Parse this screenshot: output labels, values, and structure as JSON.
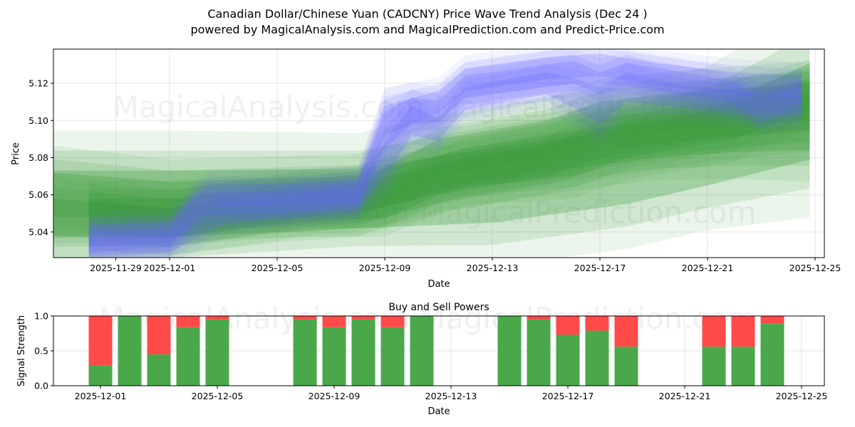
{
  "title_line1": "Canadian Dollar/Chinese Yuan (CADCNY) Price Wave Trend Analysis (Dec 24 )",
  "title_line2": "powered by MagicalAnalysis.com and MagicalPrediction.com and Predict-Price.com",
  "watermarks": [
    "MagicalAnalysis.com",
    "MagicalPrediction.com"
  ],
  "chart_data": [
    {
      "type": "area",
      "title": "",
      "xlabel": "Date",
      "ylabel": "Price",
      "ylim": [
        5.0262,
        5.1384
      ],
      "x_ticks": [
        "2025-11-29",
        "2025-12-01",
        "2025-12-05",
        "2025-12-09",
        "2025-12-13",
        "2025-12-17",
        "2025-12-21",
        "2025-12-25"
      ],
      "x_tick_days": [
        -2,
        0,
        4,
        8,
        12,
        16,
        20,
        24
      ],
      "y_ticks": [
        "5.04",
        "5.06",
        "5.08",
        "5.10",
        "5.12"
      ],
      "y_tick_values": [
        5.04,
        5.06,
        5.08,
        5.1,
        5.12
      ],
      "colors": {
        "blue": "#6666ff",
        "green": "#3a9a3a"
      },
      "blue_bands": [
        {
          "name": "wave-blue-1",
          "points": [
            [
              -3,
              5.035,
              0.006
            ],
            [
              0,
              5.037,
              0.005
            ],
            [
              1,
              5.055,
              0.006
            ],
            [
              4,
              5.056,
              0.006
            ],
            [
              7,
              5.06,
              0.006
            ],
            [
              8,
              5.095,
              0.01
            ],
            [
              9,
              5.105,
              0.007
            ],
            [
              10,
              5.105,
              0.006
            ],
            [
              11,
              5.118,
              0.006
            ],
            [
              14,
              5.124,
              0.006
            ],
            [
              15,
              5.126,
              0.006
            ],
            [
              16,
              5.12,
              0.006
            ],
            [
              17,
              5.125,
              0.006
            ],
            [
              19,
              5.12,
              0.006
            ],
            [
              21,
              5.115,
              0.006
            ],
            [
              22,
              5.105,
              0.006
            ],
            [
              23.5,
              5.115,
              0.006
            ]
          ]
        },
        {
          "name": "wave-blue-2",
          "points": [
            [
              -3,
              5.032,
              0.005
            ],
            [
              0,
              5.034,
              0.005
            ],
            [
              2,
              5.05,
              0.006
            ],
            [
              5,
              5.055,
              0.006
            ],
            [
              7,
              5.058,
              0.006
            ],
            [
              8.3,
              5.085,
              0.01
            ],
            [
              9,
              5.1,
              0.008
            ],
            [
              10,
              5.095,
              0.006
            ],
            [
              11,
              5.112,
              0.006
            ],
            [
              14,
              5.12,
              0.006
            ],
            [
              15,
              5.115,
              0.008
            ],
            [
              16,
              5.108,
              0.01
            ],
            [
              17,
              5.118,
              0.008
            ],
            [
              19,
              5.113,
              0.006
            ],
            [
              21,
              5.11,
              0.006
            ],
            [
              23.5,
              5.108,
              0.006
            ]
          ]
        },
        {
          "name": "wave-blue-3",
          "points": [
            [
              -3,
              5.038,
              0.006
            ],
            [
              0,
              5.04,
              0.006
            ],
            [
              1.5,
              5.06,
              0.006
            ],
            [
              4,
              5.06,
              0.006
            ],
            [
              7,
              5.062,
              0.006
            ],
            [
              8,
              5.1,
              0.008
            ],
            [
              10,
              5.11,
              0.006
            ],
            [
              11,
              5.122,
              0.006
            ],
            [
              14,
              5.128,
              0.006
            ],
            [
              16,
              5.13,
              0.006
            ],
            [
              18,
              5.125,
              0.006
            ],
            [
              21,
              5.12,
              0.006
            ],
            [
              23.5,
              5.118,
              0.006
            ]
          ]
        }
      ],
      "green_bands": [
        {
          "name": "wave-green-1",
          "points": [
            [
              -4.3,
              5.055,
              0.018
            ],
            [
              0,
              5.055,
              0.018
            ],
            [
              7,
              5.058,
              0.016
            ],
            [
              12,
              5.065,
              0.02
            ],
            [
              17,
              5.075,
              0.02
            ],
            [
              20,
              5.085,
              0.02
            ],
            [
              23.8,
              5.105,
              0.026
            ]
          ]
        },
        {
          "name": "wave-green-2",
          "points": [
            [
              -4.3,
              5.048,
              0.01
            ],
            [
              0,
              5.045,
              0.008
            ],
            [
              4,
              5.052,
              0.008
            ],
            [
              7,
              5.055,
              0.008
            ],
            [
              8,
              5.065,
              0.01
            ],
            [
              10,
              5.08,
              0.01
            ],
            [
              14,
              5.09,
              0.01
            ],
            [
              16,
              5.1,
              0.01
            ],
            [
              19,
              5.105,
              0.01
            ],
            [
              23.8,
              5.11,
              0.01
            ]
          ]
        },
        {
          "name": "wave-green-3",
          "points": [
            [
              -3,
              5.048,
              0.008
            ],
            [
              0,
              5.045,
              0.008
            ],
            [
              5,
              5.055,
              0.008
            ],
            [
              8,
              5.055,
              0.008
            ],
            [
              10,
              5.068,
              0.008
            ],
            [
              14,
              5.078,
              0.008
            ],
            [
              16,
              5.09,
              0.01
            ],
            [
              20,
              5.1,
              0.01
            ],
            [
              23.8,
              5.105,
              0.01
            ]
          ]
        },
        {
          "name": "wave-green-4",
          "points": [
            [
              -3,
              5.05,
              0.008
            ],
            [
              0,
              5.05,
              0.008
            ],
            [
              7,
              5.058,
              0.008
            ],
            [
              11,
              5.072,
              0.008
            ],
            [
              15,
              5.08,
              0.01
            ],
            [
              17,
              5.09,
              0.01
            ],
            [
              21,
              5.1,
              0.01
            ],
            [
              23.8,
              5.115,
              0.008
            ]
          ]
        },
        {
          "name": "wave-green-5",
          "points": [
            [
              -4.3,
              5.06,
              0.012
            ],
            [
              0,
              5.057,
              0.01
            ],
            [
              7,
              5.06,
              0.01
            ],
            [
              11,
              5.075,
              0.01
            ],
            [
              14,
              5.082,
              0.01
            ],
            [
              18,
              5.09,
              0.01
            ],
            [
              21,
              5.095,
              0.012
            ],
            [
              23.8,
              5.098,
              0.014
            ]
          ]
        }
      ]
    },
    {
      "type": "bar",
      "title": "Buy and Sell Powers",
      "xlabel": "Date",
      "ylabel": "Signal Strength",
      "ylim": [
        0,
        1
      ],
      "y_ticks": [
        "0.0",
        "0.5",
        "1.0"
      ],
      "y_tick_values": [
        0,
        0.5,
        1
      ],
      "x_ticks": [
        "2025-12-01",
        "2025-12-05",
        "2025-12-09",
        "2025-12-13",
        "2025-12-17",
        "2025-12-21",
        "2025-12-25"
      ],
      "x_tick_days": [
        0,
        4,
        8,
        12,
        16,
        20,
        24
      ],
      "colors": {
        "buy": "#4aa84a",
        "sell": "#ff4a4a"
      },
      "dates": [
        "2025-12-01",
        "2025-12-02",
        "2025-12-03",
        "2025-12-04",
        "2025-12-05",
        "2025-12-08",
        "2025-12-09",
        "2025-12-10",
        "2025-12-11",
        "2025-12-12",
        "2025-12-15",
        "2025-12-16",
        "2025-12-17",
        "2025-12-18",
        "2025-12-19",
        "2025-12-22",
        "2025-12-23",
        "2025-12-24"
      ],
      "days": [
        0,
        1,
        2,
        3,
        4,
        7,
        8,
        9,
        10,
        11,
        14,
        15,
        16,
        17,
        18,
        21,
        22,
        23
      ],
      "buy": [
        0.29,
        1.0,
        0.45,
        0.84,
        0.95,
        0.95,
        0.84,
        0.95,
        0.84,
        1.0,
        1.0,
        0.95,
        0.73,
        0.79,
        0.56,
        0.56,
        0.56,
        0.89
      ],
      "sell": [
        0.71,
        0.0,
        0.55,
        0.16,
        0.05,
        0.05,
        0.16,
        0.05,
        0.16,
        0.0,
        0.0,
        0.05,
        0.27,
        0.21,
        0.44,
        0.44,
        0.44,
        0.11
      ]
    }
  ]
}
